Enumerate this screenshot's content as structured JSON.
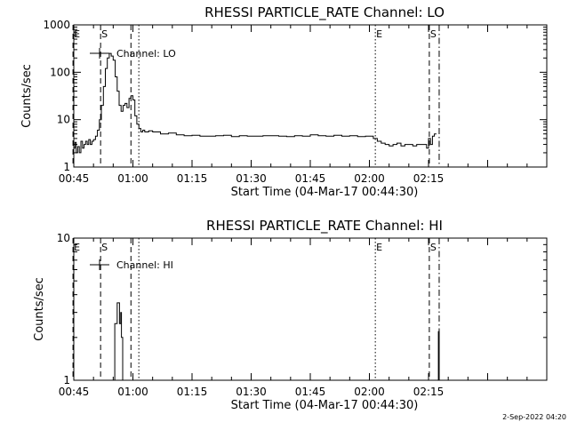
{
  "footer": "2-Sep-2022 04:20",
  "chart_data": [
    {
      "type": "line",
      "title": "RHESSI PARTICLE_RATE Channel: LO",
      "xlabel": "Start Time (04-Mar-17 00:44:30)",
      "ylabel": "Counts/sec",
      "yscale": "log",
      "ylim": [
        1,
        1000
      ],
      "xlim_minutes": [
        0,
        120
      ],
      "xticks": [
        {
          "label": "00:45",
          "t": 0
        },
        {
          "label": "01:00",
          "t": 15
        },
        {
          "label": "01:15",
          "t": 30
        },
        {
          "label": "01:30",
          "t": 45
        },
        {
          "label": "01:45",
          "t": 60
        },
        {
          "label": "02:00",
          "t": 75
        },
        {
          "label": "02:15",
          "t": 90
        }
      ],
      "yticks": [
        {
          "label": "1",
          "v": 1
        },
        {
          "label": "10",
          "v": 10
        },
        {
          "label": "100",
          "v": 100
        },
        {
          "label": "1000",
          "v": 1000
        }
      ],
      "legend": "Channel: LO",
      "series": [
        {
          "name": "Channel: LO",
          "x": [
            0,
            0.3,
            0.6,
            1,
            1.4,
            1.8,
            2.2,
            2.6,
            3,
            3.4,
            3.8,
            4.2,
            4.6,
            5,
            5.5,
            6,
            6.5,
            7,
            7.5,
            8,
            8.5,
            9,
            9.5,
            10,
            10.5,
            11,
            11.5,
            12,
            12.5,
            13,
            13.5,
            14,
            14.5,
            15,
            15.5,
            16,
            16.5,
            17,
            17.5,
            18,
            19,
            20,
            22,
            24,
            26,
            28,
            30,
            32,
            34,
            36,
            38,
            40,
            42,
            44,
            46,
            48,
            50,
            52,
            54,
            56,
            58,
            60,
            62,
            64,
            66,
            68,
            70,
            72,
            74,
            76,
            77,
            78,
            79,
            80,
            81,
            82,
            83,
            84,
            85,
            86,
            87,
            88,
            89,
            89.5,
            90,
            90.5,
            91,
            91.5,
            92
          ],
          "y": [
            2.5,
            3.3,
            2.0,
            2.7,
            2.0,
            3.5,
            2.5,
            3.0,
            3.5,
            3.0,
            3.8,
            3.0,
            3.5,
            3.8,
            4.5,
            6.0,
            10,
            20,
            50,
            120,
            200,
            250,
            220,
            180,
            80,
            40,
            20,
            15,
            20,
            22,
            18,
            28,
            32,
            26,
            12,
            8,
            6.5,
            5.5,
            6.0,
            5.5,
            5.8,
            5.5,
            5.0,
            5.2,
            4.8,
            4.6,
            4.7,
            4.5,
            4.5,
            4.6,
            4.7,
            4.4,
            4.6,
            4.5,
            4.5,
            4.6,
            4.6,
            4.5,
            4.4,
            4.6,
            4.5,
            4.8,
            4.6,
            4.5,
            4.7,
            4.5,
            4.6,
            4.4,
            4.5,
            4.0,
            3.5,
            3.2,
            3.0,
            2.8,
            3.0,
            3.2,
            2.8,
            3.0,
            3.0,
            2.8,
            3.0,
            3.0,
            3.0,
            2.5,
            4.0,
            3.0,
            4.5,
            5.0,
            5.0
          ]
        }
      ],
      "markers": [
        {
          "t": -0.2,
          "label": "E",
          "style": "dashed"
        },
        {
          "t": 6.8,
          "label": "S",
          "style": "dashed"
        },
        {
          "t": 14.5,
          "label": "",
          "style": "dashed"
        },
        {
          "t": 16.5,
          "label": "",
          "style": "dotted"
        },
        {
          "t": 76.5,
          "label": "E",
          "style": "dotted"
        },
        {
          "t": 90.2,
          "label": "S",
          "style": "dashed"
        },
        {
          "t": 92.7,
          "label": "",
          "style": "dashdot"
        }
      ]
    },
    {
      "type": "line",
      "title": "RHESSI PARTICLE_RATE Channel: HI",
      "xlabel": "Start Time (04-Mar-17 00:44:30)",
      "ylabel": "Counts/sec",
      "yscale": "log",
      "ylim": [
        1,
        10
      ],
      "xlim_minutes": [
        0,
        120
      ],
      "xticks": [
        {
          "label": "00:45",
          "t": 0
        },
        {
          "label": "01:00",
          "t": 15
        },
        {
          "label": "01:15",
          "t": 30
        },
        {
          "label": "01:30",
          "t": 45
        },
        {
          "label": "01:45",
          "t": 60
        },
        {
          "label": "02:00",
          "t": 75
        },
        {
          "label": "02:15",
          "t": 90
        }
      ],
      "yticks": [
        {
          "label": "1",
          "v": 1
        },
        {
          "label": "10",
          "v": 10
        }
      ],
      "legend": "Channel: HI",
      "series": [
        {
          "name": "Channel: HI",
          "segments": [
            {
              "x": [
                10.2,
                10.4,
                10.8,
                11.0,
                11.3,
                11.6,
                11.9,
                12.1,
                12.4
              ],
              "y": [
                1.0,
                2.5,
                2.5,
                3.5,
                3.5,
                2.5,
                3.0,
                2.0,
                1.0
              ]
            },
            {
              "x": [
                92.2,
                92.5,
                92.7
              ],
              "y": [
                1.0,
                2.2,
                1.0
              ]
            }
          ]
        }
      ],
      "markers": [
        {
          "t": -0.2,
          "label": "E",
          "style": "dashed"
        },
        {
          "t": 6.8,
          "label": "S",
          "style": "dashed"
        },
        {
          "t": 14.5,
          "label": "",
          "style": "dashed"
        },
        {
          "t": 16.5,
          "label": "",
          "style": "dotted"
        },
        {
          "t": 76.5,
          "label": "E",
          "style": "dotted"
        },
        {
          "t": 90.2,
          "label": "S",
          "style": "dashed"
        },
        {
          "t": 92.7,
          "label": "",
          "style": "dashdot"
        }
      ]
    }
  ]
}
